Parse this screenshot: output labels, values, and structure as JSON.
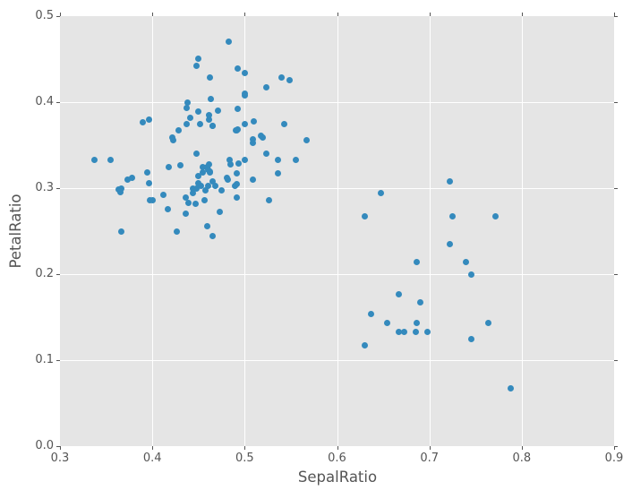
{
  "chart_data": {
    "type": "scatter",
    "title": "",
    "xlabel": "SepalRatio",
    "ylabel": "PetalRatio",
    "xlim": [
      0.3,
      0.9
    ],
    "ylim": [
      0.0,
      0.5
    ],
    "x_ticks": {
      "values": [
        0.3,
        0.4,
        0.5,
        0.6,
        0.7,
        0.8,
        0.9
      ],
      "labels": [
        "0.3",
        "0.4",
        "0.5",
        "0.6",
        "0.7",
        "0.8",
        "0.9"
      ]
    },
    "y_ticks": {
      "values": [
        0.0,
        0.1,
        0.2,
        0.3,
        0.4,
        0.5
      ],
      "labels": [
        "0.0",
        "0.1",
        "0.2",
        "0.3",
        "0.4",
        "0.5"
      ]
    },
    "grid": "on",
    "legend": "none",
    "style": {
      "figure_background": "#FFFFFF",
      "plot_background": "#E5E5E5",
      "grid_color": "#FFFFFF",
      "marker_color": "#348ABD",
      "tick_color": "#555555",
      "text_color": "#555555",
      "marker_diameter_px": 7
    },
    "points": [
      [
        0.4571,
        0.2979
      ],
      [
        0.5,
        0.3333
      ],
      [
        0.4493,
        0.3061
      ],
      [
        0.4182,
        0.325
      ],
      [
        0.4308,
        0.3261
      ],
      [
        0.4912,
        0.2889
      ],
      [
        0.5238,
        0.3404
      ],
      [
        0.4898,
        0.303
      ],
      [
        0.4394,
        0.2826
      ],
      [
        0.5192,
        0.359
      ],
      [
        0.4,
        0.2857
      ],
      [
        0.5085,
        0.3571
      ],
      [
        0.3667,
        0.25
      ],
      [
        0.4754,
        0.2979
      ],
      [
        0.5179,
        0.3611
      ],
      [
        0.4627,
        0.3182
      ],
      [
        0.5357,
        0.3333
      ],
      [
        0.4655,
        0.2439
      ],
      [
        0.3548,
        0.3333
      ],
      [
        0.4464,
        0.2821
      ],
      [
        0.5424,
        0.375
      ],
      [
        0.459,
        0.325
      ],
      [
        0.3968,
        0.3061
      ],
      [
        0.459,
        0.2553
      ],
      [
        0.4531,
        0.3023
      ],
      [
        0.4545,
        0.3182
      ],
      [
        0.4118,
        0.2917
      ],
      [
        0.4478,
        0.34
      ],
      [
        0.4833,
        0.3333
      ],
      [
        0.4561,
        0.2857
      ],
      [
        0.4364,
        0.2895
      ],
      [
        0.4364,
        0.2703
      ],
      [
        0.4655,
        0.3077
      ],
      [
        0.45,
        0.3137
      ],
      [
        0.5556,
        0.3333
      ],
      [
        0.5667,
        0.3556
      ],
      [
        0.4627,
        0.3191
      ],
      [
        0.3651,
        0.2955
      ],
      [
        0.5357,
        0.3171
      ],
      [
        0.4545,
        0.325
      ],
      [
        0.4727,
        0.2727
      ],
      [
        0.4918,
        0.3043
      ],
      [
        0.4483,
        0.3
      ],
      [
        0.46,
        0.303
      ],
      [
        0.4821,
        0.3095
      ],
      [
        0.5263,
        0.2857
      ],
      [
        0.5088,
        0.3095
      ],
      [
        0.4677,
        0.3023
      ],
      [
        0.4902,
        0.3667
      ],
      [
        0.4912,
        0.3171
      ],
      [
        0.5238,
        0.4167
      ],
      [
        0.4655,
        0.3725
      ],
      [
        0.4225,
        0.3559
      ],
      [
        0.4603,
        0.3214
      ],
      [
        0.4615,
        0.3793
      ],
      [
        0.3947,
        0.3182
      ],
      [
        0.5102,
        0.3778
      ],
      [
        0.3973,
        0.2857
      ],
      [
        0.3731,
        0.3103
      ],
      [
        0.5,
        0.4098
      ],
      [
        0.4923,
        0.3922
      ],
      [
        0.4219,
        0.3585
      ],
      [
        0.4412,
        0.3818
      ],
      [
        0.4386,
        0.4
      ],
      [
        0.4828,
        0.4706
      ],
      [
        0.5,
        0.434
      ],
      [
        0.4615,
        0.3273
      ],
      [
        0.4935,
        0.3284
      ],
      [
        0.3377,
        0.3333
      ],
      [
        0.3667,
        0.3
      ],
      [
        0.4638,
        0.4035
      ],
      [
        0.5,
        0.4082
      ],
      [
        0.3636,
        0.2985
      ],
      [
        0.4286,
        0.3673
      ],
      [
        0.4925,
        0.3684
      ],
      [
        0.4444,
        0.3
      ],
      [
        0.4516,
        0.375
      ],
      [
        0.4918,
        0.3673
      ],
      [
        0.4375,
        0.375
      ],
      [
        0.4167,
        0.2759
      ],
      [
        0.3784,
        0.3115
      ],
      [
        0.481,
        0.3125
      ],
      [
        0.4375,
        0.3929
      ],
      [
        0.4444,
        0.2941
      ],
      [
        0.4262,
        0.25
      ],
      [
        0.3896,
        0.377
      ],
      [
        0.5397,
        0.4286
      ],
      [
        0.4844,
        0.3273
      ],
      [
        0.5,
        0.375
      ],
      [
        0.4493,
        0.3889
      ],
      [
        0.4627,
        0.4286
      ],
      [
        0.4493,
        0.451
      ],
      [
        0.4655,
        0.3725
      ],
      [
        0.4706,
        0.3898
      ],
      [
        0.4925,
        0.4386
      ],
      [
        0.4478,
        0.4423
      ],
      [
        0.3968,
        0.38
      ],
      [
        0.4615,
        0.3846
      ],
      [
        0.5484,
        0.4259
      ],
      [
        0.5085,
        0.3529
      ],
      [
        0.7222,
        0.3077
      ],
      [
        0.6471,
        0.2941
      ],
      [
        0.6296,
        0.2667
      ],
      [
        0.7255,
        0.2667
      ],
      [
        0.7719,
        0.2667
      ],
      [
        0.7222,
        0.2353
      ],
      [
        0.6863,
        0.2143
      ],
      [
        0.7391,
        0.2143
      ],
      [
        0.7451,
        0.2
      ],
      [
        0.6667,
        0.1765
      ],
      [
        0.6897,
        0.1667
      ],
      [
        0.6364,
        0.1538
      ],
      [
        0.6538,
        0.1429
      ],
      [
        0.6863,
        0.1429
      ],
      [
        0.7636,
        0.1429
      ],
      [
        0.6667,
        0.1333
      ],
      [
        0.6731,
        0.1333
      ],
      [
        0.6852,
        0.1333
      ],
      [
        0.6981,
        0.1333
      ],
      [
        0.7451,
        0.125
      ],
      [
        0.6296,
        0.1176
      ],
      [
        0.7885,
        0.0667
      ]
    ]
  }
}
